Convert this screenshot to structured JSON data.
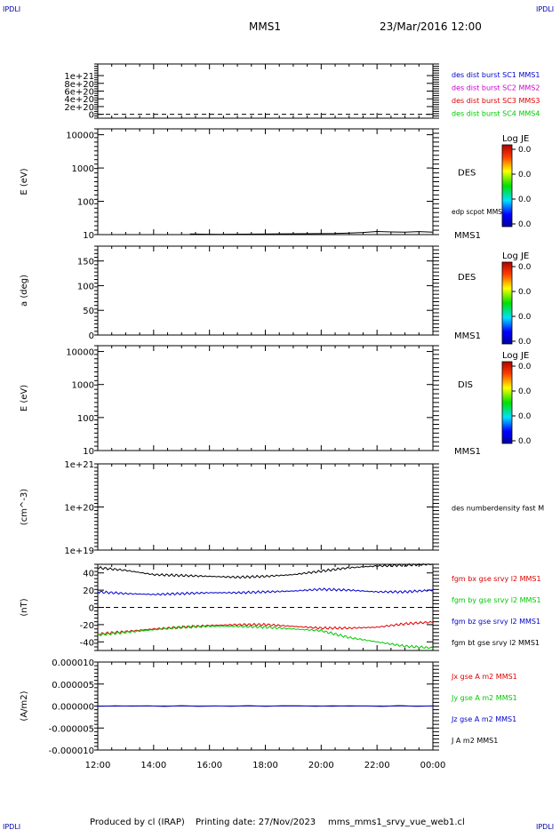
{
  "header": {
    "ipdli": "IPDLI",
    "spacecraft": "MMS1",
    "datetime": "23/Mar/2016 12:00"
  },
  "footer": {
    "produced": "Produced by cl (IRAP)",
    "printing": "Printing date: 27/Nov/2023",
    "file": "mms_mms1_srvy_vue_web1.cl"
  },
  "x_ticks": [
    "12:00",
    "14:00",
    "16:00",
    "18:00",
    "20:00",
    "22:00",
    "00:00"
  ],
  "colors": {
    "black": "#000000",
    "red": "#dd0000",
    "green": "#00c800",
    "blue": "#0000cc",
    "magenta": "#cc00cc"
  },
  "chart_data": [
    {
      "type": "line",
      "ylim": [
        -1e+20,
        1.3e+21
      ],
      "yticks": [
        "1e+21",
        "8e+20",
        "6e+20",
        "4e+20",
        "2e+20",
        "0"
      ],
      "legend": [
        {
          "label": "des dist burst SC1 MMS1",
          "color": "#0000cc"
        },
        {
          "label": "des dist burst SC2 MMS2",
          "color": "#cc00cc"
        },
        {
          "label": "des dist burst SC3 MMS3",
          "color": "#dd0000"
        },
        {
          "label": "des dist burst SC4 MMS4",
          "color": "#00c800"
        }
      ]
    },
    {
      "type": "heatmap",
      "ylabel": "E (eV)",
      "yscale": "log",
      "ylim": [
        10,
        15000
      ],
      "yticks": [
        "10000",
        "1000",
        "100",
        "10"
      ],
      "label": "DES",
      "line_label": "edp scpot MMS1",
      "sc_label": "MMS1",
      "colorbar": {
        "title": "Log JE",
        "ticks": [
          "0.0",
          "0.0",
          "0.0",
          "0.0"
        ]
      },
      "scpot_series": {
        "x_hours": [
          15.3,
          15.7,
          16.4,
          20.5,
          21.0,
          21.5,
          22.0,
          22.5,
          23.0,
          23.5,
          24.0
        ],
        "values": [
          10.5,
          10.3,
          10.2,
          10.8,
          11.2,
          11.6,
          12.4,
          12.0,
          11.8,
          12.3,
          11.9
        ]
      }
    },
    {
      "type": "heatmap",
      "ylabel": "a (deg)",
      "ylim": [
        0,
        180
      ],
      "yticks": [
        "150",
        "100",
        "50",
        "0"
      ],
      "label": "DES",
      "sc_label": "MMS1",
      "colorbar": {
        "title": "Log JE",
        "ticks": [
          "0.0",
          "0.0",
          "0.0",
          "0.0"
        ]
      }
    },
    {
      "type": "heatmap",
      "ylabel": "E (eV)",
      "yscale": "log",
      "ylim": [
        10,
        15000
      ],
      "yticks": [
        "10000",
        "1000",
        "100",
        "10"
      ],
      "label": "DIS",
      "sc_label": "MMS1",
      "colorbar": {
        "title": "Log JE",
        "ticks": [
          "0.0",
          "0.0",
          "0.0",
          "0.0"
        ]
      }
    },
    {
      "type": "line",
      "ylabel": "(cm^-3)",
      "yscale": "log",
      "ylim": [
        1e+19,
        1e+21
      ],
      "yticks": [
        "1e+21",
        "1e+20",
        "1e+19"
      ],
      "legend": [
        {
          "label": "des numberdensity fast M",
          "color": "#000000"
        }
      ]
    },
    {
      "type": "line",
      "ylabel": "(nT)",
      "ylim": [
        -50,
        50
      ],
      "yticks": [
        "40",
        "20",
        "0",
        "-20",
        "-40"
      ],
      "legend": [
        {
          "label": "fgm bx gse srvy l2 MMS1",
          "color": "#dd0000"
        },
        {
          "label": "fgm by gse srvy l2 MMS1",
          "color": "#00c800"
        },
        {
          "label": "fgm bz gse srvy l2 MMS1",
          "color": "#0000cc"
        },
        {
          "label": "fgm bt gse srvy l2 MMS1",
          "color": "#000000"
        }
      ],
      "x_hours": [
        12,
        13,
        14,
        15,
        16,
        17,
        18,
        19,
        20,
        21,
        22,
        23,
        24
      ],
      "series": [
        {
          "name": "fgm bt gse srvy l2 MMS1",
          "color": "#000000",
          "values": [
            46,
            43,
            38,
            37,
            36,
            35,
            36,
            38,
            42,
            46,
            48,
            49,
            50
          ]
        },
        {
          "name": "fgm bz gse srvy l2 MMS1",
          "color": "#0000cc",
          "values": [
            18,
            16,
            15,
            16,
            17,
            17,
            18,
            19,
            21,
            20,
            18,
            18,
            20
          ]
        },
        {
          "name": "fgm bx gse srvy l2 MMS1",
          "color": "#dd0000",
          "values": [
            -31,
            -28,
            -25,
            -23,
            -21,
            -20,
            -20,
            -22,
            -24,
            -24,
            -23,
            -19,
            -17
          ]
        },
        {
          "name": "fgm by gse srvy l2 MMS1",
          "color": "#00c800",
          "values": [
            -32,
            -29,
            -26,
            -23,
            -22,
            -22,
            -23,
            -25,
            -27,
            -35,
            -40,
            -45,
            -47
          ]
        }
      ]
    },
    {
      "type": "line",
      "ylabel": "(A/m2)",
      "ylim": [
        -1e-05,
        1e-05
      ],
      "yticks": [
        "0.000010",
        "0.000005",
        "0.000000",
        "-0.000005",
        "-0.000010"
      ],
      "legend": [
        {
          "label": "Jx gse A m2 MMS1",
          "color": "#dd0000"
        },
        {
          "label": "Jy gse A m2 MMS1",
          "color": "#00c800"
        },
        {
          "label": "Jz gse A m2 MMS1",
          "color": "#0000cc"
        },
        {
          "label": "J A m2 MMS1",
          "color": "#000000"
        }
      ],
      "x_hours": [
        12,
        24
      ],
      "series": [
        {
          "name": "J A m2 MMS1",
          "color": "#000000",
          "values": [
            0.0,
            0.0
          ]
        },
        {
          "name": "Jz gse A m2 MMS1",
          "color": "#0000cc",
          "values": [
            0.0,
            0.0
          ]
        }
      ]
    }
  ]
}
